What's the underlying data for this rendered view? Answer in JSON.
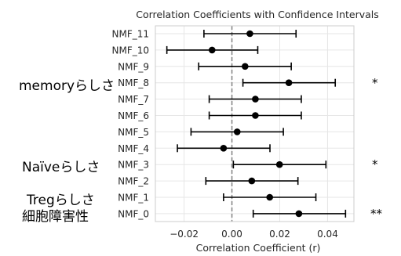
{
  "chart_data": {
    "type": "scatter",
    "title": "Correlation Coefficients with Confidence Intervals",
    "xlabel": "Correlation Coefficient (r)",
    "ylabel": "",
    "xlim": [
      -0.032,
      0.051
    ],
    "xticks": [
      -0.02,
      0.0,
      0.02,
      0.04
    ],
    "xtick_labels": [
      "−0.02",
      "0.00",
      "0.02",
      "0.04"
    ],
    "grid": true,
    "reference_line": 0.0,
    "categories": [
      "NMF_11",
      "NMF_10",
      "NMF_9",
      "NMF_8",
      "NMF_7",
      "NMF_6",
      "NMF_5",
      "NMF_4",
      "NMF_3",
      "NMF_2",
      "NMF_1",
      "NMF_0"
    ],
    "series": [
      {
        "estimate": [
          0.0075,
          -0.0083,
          0.0055,
          0.0238,
          0.0098,
          0.0098,
          0.0022,
          -0.0035,
          0.0199,
          0.0083,
          0.0158,
          0.028
        ],
        "ci_low": [
          -0.0117,
          -0.0272,
          -0.0139,
          0.0046,
          -0.0095,
          -0.0095,
          -0.0171,
          -0.0228,
          0.0006,
          -0.0109,
          -0.0035,
          0.0089
        ],
        "ci_high": [
          0.0268,
          0.0108,
          0.0248,
          0.0432,
          0.029,
          0.029,
          0.0215,
          0.0159,
          0.0393,
          0.0276,
          0.0351,
          0.0475
        ]
      }
    ],
    "annotations": {
      "group_labels": [
        {
          "text": "memoryらしさ",
          "row": "NMF_8"
        },
        {
          "text": "Naïveらしさ",
          "row": "NMF_3"
        },
        {
          "text": "Tregらしさ",
          "row": "NMF_1"
        },
        {
          "text": "細胞障害性",
          "row": "NMF_0"
        }
      ],
      "significance": [
        {
          "text": "*",
          "row": "NMF_8"
        },
        {
          "text": "*",
          "row": "NMF_3"
        },
        {
          "text": "**",
          "row": "NMF_0"
        }
      ]
    },
    "colors": {
      "marker": "#000000",
      "reference_line": "#808080",
      "grid": "#e6e6e6",
      "frame": "#cccccc"
    }
  }
}
